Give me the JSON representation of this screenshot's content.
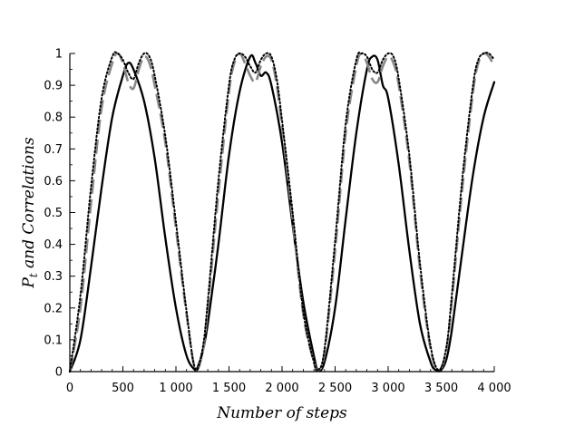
{
  "chart_data": {
    "type": "line",
    "title": "",
    "xlabel": "Number of steps",
    "ylabel": "P_t and Correlations",
    "ylabel_parts": {
      "main": "P",
      "subscript": "t",
      "rest": " and Correlations"
    },
    "xlim": [
      0,
      4000
    ],
    "ylim": [
      0,
      1
    ],
    "x_ticks": [
      0,
      500,
      1000,
      1500,
      2000,
      2500,
      3000,
      3500,
      4000
    ],
    "x_tick_labels": [
      "0",
      "500",
      "1 000",
      "1 500",
      "2 000",
      "2 500",
      "3 000",
      "3 500",
      "4 000"
    ],
    "y_ticks": [
      0,
      0.1,
      0.2,
      0.3,
      0.4,
      0.5,
      0.6,
      0.7,
      0.8,
      0.9,
      1
    ],
    "y_tick_labels": [
      "0",
      "0.1",
      "0.2",
      "0.3",
      "0.4",
      "0.5",
      "0.6",
      "0.7",
      "0.8",
      "0.9",
      "1"
    ],
    "grid": false,
    "legend": "none",
    "series": [
      {
        "style": "solid-black",
        "color": "#000000",
        "x": [
          0,
          100,
          200,
          300,
          400,
          500,
          550,
          600,
          700,
          800,
          900,
          1000,
          1100,
          1180,
          1200,
          1250,
          1300,
          1400,
          1500,
          1600,
          1700,
          1750,
          1800,
          1850,
          1900,
          2000,
          2100,
          2200,
          2300,
          2340,
          2400,
          2500,
          2600,
          2700,
          2800,
          2850,
          2900,
          2950,
          3000,
          3100,
          3200,
          3300,
          3400,
          3450,
          3500,
          3550,
          3600,
          3700,
          3800,
          3900,
          4000
        ],
        "y": [
          0,
          0.1,
          0.33,
          0.58,
          0.8,
          0.93,
          0.97,
          0.95,
          0.85,
          0.67,
          0.42,
          0.2,
          0.05,
          0.005,
          0.01,
          0.06,
          0.15,
          0.4,
          0.68,
          0.88,
          0.99,
          0.97,
          0.93,
          0.94,
          0.9,
          0.72,
          0.46,
          0.22,
          0.05,
          0.005,
          0.03,
          0.2,
          0.48,
          0.75,
          0.95,
          0.99,
          0.98,
          0.9,
          0.86,
          0.65,
          0.38,
          0.15,
          0.03,
          0.005,
          0.005,
          0.04,
          0.13,
          0.38,
          0.62,
          0.8,
          0.91
        ]
      },
      {
        "style": "dashed-gray",
        "color": "#888888",
        "x": [
          0,
          100,
          200,
          300,
          400,
          450,
          500,
          550,
          600,
          650,
          700,
          750,
          800,
          900,
          1000,
          1100,
          1180,
          1250,
          1300,
          1400,
          1500,
          1550,
          1600,
          1650,
          1700,
          1750,
          1800,
          1850,
          1900,
          1950,
          2000,
          2100,
          2200,
          2300,
          2340,
          2400,
          2500,
          2600,
          2700,
          2750,
          2800,
          2850,
          2900,
          2950,
          3000,
          3050,
          3100,
          3200,
          3300,
          3400,
          3480,
          3550,
          3600,
          3700,
          3800,
          3850,
          3900,
          3950,
          4000
        ],
        "y": [
          0,
          0.2,
          0.53,
          0.83,
          0.97,
          1.0,
          0.97,
          0.91,
          0.89,
          0.95,
          0.99,
          0.97,
          0.9,
          0.72,
          0.45,
          0.18,
          0.01,
          0.06,
          0.2,
          0.56,
          0.88,
          0.97,
          1.0,
          0.97,
          0.93,
          0.91,
          0.96,
          0.99,
          0.98,
          0.9,
          0.77,
          0.48,
          0.18,
          0.03,
          0.005,
          0.06,
          0.38,
          0.75,
          0.96,
          1.0,
          0.97,
          0.92,
          0.91,
          0.96,
          0.99,
          0.97,
          0.9,
          0.66,
          0.32,
          0.07,
          0.005,
          0.07,
          0.22,
          0.58,
          0.88,
          0.97,
          1.0,
          0.99,
          0.96
        ]
      },
      {
        "style": "dotted-black",
        "color": "#000000",
        "x": [
          0,
          100,
          200,
          300,
          400,
          450,
          500,
          550,
          600,
          650,
          700,
          750,
          800,
          900,
          1000,
          1100,
          1180,
          1250,
          1300,
          1400,
          1500,
          1550,
          1600,
          1650,
          1700,
          1750,
          1800,
          1850,
          1900,
          1950,
          2000,
          2100,
          2200,
          2300,
          2340,
          2400,
          2500,
          2600,
          2700,
          2750,
          2800,
          2850,
          2900,
          2950,
          3000,
          3050,
          3100,
          3200,
          3300,
          3400,
          3480,
          3550,
          3600,
          3700,
          3800,
          3850,
          3900,
          3950,
          4000
        ],
        "y": [
          0,
          0.24,
          0.58,
          0.86,
          0.99,
          1.0,
          0.98,
          0.94,
          0.92,
          0.97,
          1.0,
          0.99,
          0.93,
          0.74,
          0.47,
          0.19,
          0.01,
          0.07,
          0.22,
          0.6,
          0.9,
          0.98,
          1.0,
          0.99,
          0.96,
          0.94,
          0.98,
          1.0,
          0.99,
          0.92,
          0.79,
          0.5,
          0.19,
          0.03,
          0.005,
          0.07,
          0.41,
          0.78,
          0.98,
          1.0,
          0.99,
          0.95,
          0.94,
          0.98,
          1.0,
          0.99,
          0.92,
          0.68,
          0.34,
          0.08,
          0.005,
          0.08,
          0.24,
          0.61,
          0.9,
          0.98,
          1.0,
          1.0,
          0.98
        ]
      }
    ]
  }
}
